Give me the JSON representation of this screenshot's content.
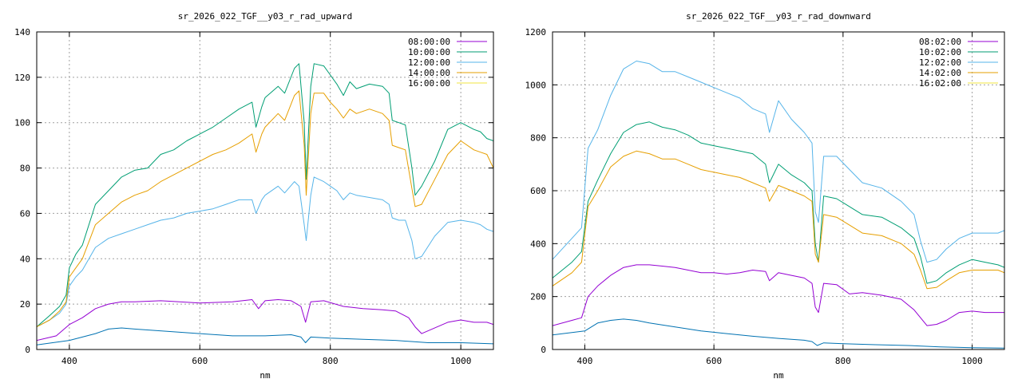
{
  "chart_data": [
    {
      "type": "line",
      "title": "sr_2026_022_TGF__y03_r_rad_upward",
      "xlabel": "nm",
      "ylabel": "",
      "xlim": [
        350,
        1050
      ],
      "ylim": [
        0,
        140
      ],
      "x_ticks": [
        400,
        600,
        800,
        1000
      ],
      "y_ticks": [
        0,
        20,
        40,
        60,
        80,
        100,
        120,
        140
      ],
      "grid": true,
      "legend_position": "top-right",
      "series": [
        {
          "name": "08:00:00",
          "color": "#9400d3",
          "x": [
            350,
            380,
            400,
            420,
            440,
            460,
            480,
            500,
            540,
            600,
            650,
            680,
            690,
            700,
            720,
            740,
            755,
            762,
            770,
            790,
            820,
            850,
            880,
            900,
            920,
            930,
            940,
            980,
            1000,
            1020,
            1040,
            1050
          ],
          "y": [
            4,
            6,
            11,
            14,
            18,
            20,
            21,
            21,
            21.5,
            20.5,
            21,
            22,
            18,
            21.5,
            22,
            21.5,
            19,
            12,
            21,
            21.5,
            19,
            18,
            17.5,
            17,
            14,
            10,
            7,
            12,
            13,
            12,
            12,
            11
          ]
        },
        {
          "name": "10:00:00",
          "color": "#009e73",
          "x": [
            350,
            370,
            385,
            395,
            400,
            410,
            420,
            440,
            460,
            480,
            500,
            520,
            540,
            560,
            580,
            600,
            620,
            640,
            660,
            680,
            686,
            695,
            700,
            720,
            730,
            745,
            752,
            760,
            763,
            770,
            775,
            790,
            800,
            810,
            820,
            830,
            840,
            860,
            880,
            890,
            895,
            905,
            915,
            925,
            930,
            940,
            960,
            980,
            1000,
            1020,
            1030,
            1040,
            1050
          ],
          "y": [
            10,
            15,
            19,
            24,
            36,
            42,
            46,
            64,
            70,
            76,
            79,
            80,
            86,
            88,
            92,
            95,
            98,
            102,
            106,
            109,
            98,
            107,
            111,
            116,
            113,
            124,
            126,
            100,
            75,
            116,
            126,
            125,
            121,
            117,
            112,
            118,
            115,
            117,
            116,
            113,
            101,
            100,
            99,
            80,
            68,
            72,
            83,
            97,
            100,
            97,
            96,
            93,
            92
          ]
        },
        {
          "name": "12:00:00",
          "color": "#56b4e9",
          "x": [
            350,
            370,
            385,
            395,
            400,
            410,
            420,
            440,
            460,
            480,
            500,
            520,
            540,
            560,
            580,
            600,
            620,
            640,
            660,
            680,
            686,
            695,
            700,
            720,
            730,
            745,
            752,
            760,
            763,
            770,
            775,
            790,
            800,
            810,
            820,
            830,
            840,
            860,
            880,
            890,
            895,
            905,
            915,
            925,
            930,
            940,
            960,
            980,
            1000,
            1020,
            1030,
            1040,
            1050
          ],
          "y": [
            10,
            13,
            16,
            20,
            28,
            32,
            35,
            45,
            49,
            51,
            53,
            55,
            57,
            58,
            60,
            61,
            62,
            64,
            66,
            66,
            60,
            66,
            68,
            72,
            69,
            74,
            72,
            55,
            48,
            68,
            76,
            74,
            72,
            70,
            66,
            69,
            68,
            67,
            66,
            64,
            58,
            57,
            57,
            48,
            40,
            41,
            50,
            56,
            57,
            56,
            55,
            53,
            52
          ]
        },
        {
          "name": "14:00:00",
          "color": "#e69f00",
          "x": [
            350,
            370,
            385,
            395,
            400,
            410,
            420,
            440,
            460,
            480,
            500,
            520,
            540,
            560,
            580,
            600,
            620,
            640,
            660,
            680,
            686,
            695,
            700,
            720,
            730,
            745,
            752,
            760,
            763,
            770,
            775,
            790,
            800,
            810,
            820,
            830,
            840,
            860,
            880,
            890,
            895,
            905,
            915,
            925,
            930,
            940,
            960,
            980,
            1000,
            1020,
            1030,
            1040,
            1050
          ],
          "y": [
            10,
            13,
            17,
            21,
            32,
            36,
            40,
            55,
            60,
            65,
            68,
            70,
            74,
            77,
            80,
            83,
            86,
            88,
            91,
            95,
            87,
            95,
            98,
            104,
            101,
            112,
            114,
            90,
            68,
            104,
            113,
            113,
            109,
            106,
            102,
            106,
            104,
            106,
            104,
            101,
            90,
            89,
            88,
            71,
            63,
            64,
            75,
            86,
            92,
            88,
            87,
            86,
            80
          ]
        },
        {
          "name": "16:00:00",
          "color": "#f0e442",
          "x": [
            350,
            420,
            500,
            600,
            700,
            800,
            900,
            1000,
            1050
          ],
          "y": [
            0,
            0,
            0,
            0,
            0,
            0,
            0,
            0,
            0
          ]
        },
        {
          "name": "",
          "color": "#0072b2",
          "x": [
            350,
            400,
            440,
            460,
            480,
            500,
            550,
            600,
            650,
            700,
            740,
            755,
            762,
            770,
            800,
            850,
            900,
            950,
            1000,
            1050
          ],
          "y": [
            2,
            4,
            7,
            9,
            9.5,
            9,
            8,
            7,
            6,
            6,
            6.5,
            5.5,
            3,
            5.5,
            5,
            4.5,
            4,
            3,
            3,
            2.5
          ]
        }
      ]
    },
    {
      "type": "line",
      "title": "sr_2026_022_TGF__y03_r_rad_downward",
      "xlabel": "nm",
      "ylabel": "",
      "xlim": [
        350,
        1050
      ],
      "ylim": [
        0,
        1200
      ],
      "x_ticks": [
        400,
        600,
        800,
        1000
      ],
      "y_ticks": [
        0,
        200,
        400,
        600,
        800,
        1000,
        1200
      ],
      "grid": true,
      "legend_position": "top-right",
      "series": [
        {
          "name": "08:02:00",
          "color": "#9400d3",
          "x": [
            350,
            380,
            395,
            405,
            420,
            440,
            460,
            480,
            500,
            520,
            540,
            560,
            580,
            600,
            620,
            640,
            660,
            680,
            686,
            700,
            720,
            740,
            752,
            757,
            762,
            770,
            790,
            810,
            830,
            860,
            890,
            910,
            920,
            930,
            945,
            960,
            980,
            1000,
            1020,
            1040,
            1050
          ],
          "y": [
            90,
            110,
            120,
            200,
            240,
            280,
            310,
            320,
            320,
            315,
            310,
            300,
            290,
            290,
            285,
            290,
            300,
            295,
            260,
            290,
            280,
            270,
            250,
            160,
            140,
            250,
            245,
            210,
            215,
            205,
            190,
            150,
            120,
            90,
            95,
            110,
            140,
            145,
            140,
            140,
            140
          ]
        },
        {
          "name": "10:02:00",
          "color": "#009e73",
          "x": [
            350,
            380,
            395,
            405,
            420,
            440,
            460,
            480,
            500,
            520,
            540,
            560,
            580,
            600,
            620,
            640,
            660,
            680,
            686,
            700,
            720,
            740,
            752,
            757,
            762,
            770,
            790,
            810,
            830,
            860,
            890,
            910,
            920,
            930,
            945,
            960,
            980,
            1000,
            1020,
            1040,
            1050
          ],
          "y": [
            270,
            330,
            370,
            560,
            640,
            740,
            820,
            850,
            860,
            840,
            830,
            810,
            780,
            770,
            760,
            750,
            740,
            700,
            630,
            700,
            660,
            630,
            600,
            400,
            330,
            580,
            570,
            540,
            510,
            500,
            460,
            420,
            350,
            250,
            260,
            290,
            320,
            340,
            330,
            320,
            310
          ]
        },
        {
          "name": "12:02:00",
          "color": "#56b4e9",
          "x": [
            350,
            380,
            395,
            405,
            420,
            440,
            460,
            480,
            500,
            520,
            540,
            560,
            580,
            600,
            620,
            640,
            660,
            680,
            686,
            700,
            720,
            740,
            752,
            757,
            762,
            770,
            790,
            810,
            830,
            860,
            890,
            910,
            920,
            930,
            945,
            960,
            980,
            1000,
            1020,
            1040,
            1050
          ],
          "y": [
            340,
            420,
            460,
            760,
            830,
            960,
            1060,
            1090,
            1080,
            1050,
            1050,
            1030,
            1010,
            990,
            970,
            950,
            910,
            890,
            820,
            940,
            870,
            820,
            780,
            520,
            480,
            730,
            730,
            680,
            630,
            610,
            560,
            510,
            410,
            330,
            340,
            380,
            420,
            440,
            440,
            440,
            450
          ]
        },
        {
          "name": "14:02:00",
          "color": "#e69f00",
          "x": [
            350,
            380,
            395,
            405,
            420,
            440,
            460,
            480,
            500,
            520,
            540,
            560,
            580,
            600,
            620,
            640,
            660,
            680,
            686,
            700,
            720,
            740,
            752,
            757,
            762,
            770,
            790,
            810,
            830,
            860,
            890,
            910,
            920,
            930,
            945,
            960,
            980,
            1000,
            1020,
            1040,
            1050
          ],
          "y": [
            240,
            290,
            330,
            540,
            600,
            690,
            730,
            750,
            740,
            720,
            720,
            700,
            680,
            670,
            660,
            650,
            630,
            610,
            560,
            620,
            600,
            580,
            560,
            360,
            330,
            510,
            500,
            470,
            440,
            430,
            400,
            360,
            300,
            230,
            235,
            260,
            290,
            300,
            300,
            300,
            290
          ]
        },
        {
          "name": "16:02:00",
          "color": "#f0e442",
          "x": [
            350,
            420,
            500,
            600,
            700,
            800,
            900,
            1000,
            1050
          ],
          "y": [
            0,
            0,
            0,
            0,
            0,
            0,
            0,
            0,
            0
          ]
        },
        {
          "name": "",
          "color": "#0072b2",
          "x": [
            350,
            400,
            420,
            440,
            460,
            480,
            500,
            540,
            580,
            620,
            660,
            700,
            740,
            752,
            760,
            770,
            800,
            850,
            900,
            950,
            1000,
            1050
          ],
          "y": [
            55,
            70,
            100,
            110,
            115,
            110,
            100,
            85,
            70,
            60,
            50,
            42,
            35,
            30,
            15,
            25,
            22,
            18,
            15,
            10,
            7,
            5
          ]
        }
      ]
    }
  ]
}
